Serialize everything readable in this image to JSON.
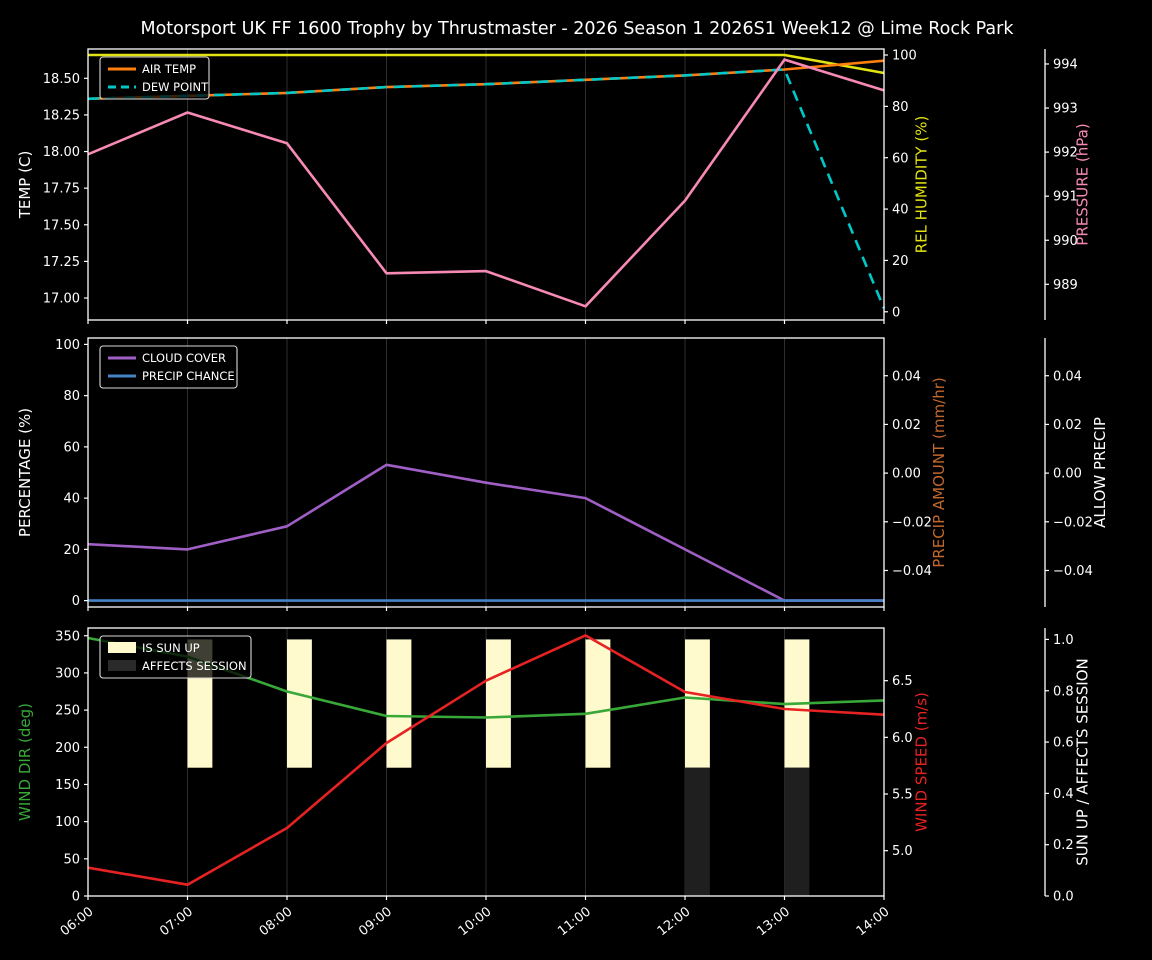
{
  "title": "Motorsport UK FF 1600 Trophy by Thrustmaster - 2026 Season 1 2026S1 Week12 @ Lime Rock Park",
  "figure": {
    "background": "#000000",
    "foreground": "#ffffff",
    "grid_color": "#2e2e2e",
    "spine_color": "#ffffff",
    "legend_border": "#d9d9d9"
  },
  "x_axis": {
    "hours": [
      6,
      7,
      8,
      9,
      10,
      11,
      12,
      13,
      14
    ],
    "labels": [
      "06:00",
      "07:00",
      "08:00",
      "09:00",
      "10:00",
      "11:00",
      "12:00",
      "13:00",
      "14:00"
    ]
  },
  "chart_data": [
    {
      "type": "line",
      "name": "temperature-humidity-pressure",
      "axes": {
        "left": {
          "id": "temp",
          "label": "TEMP (C)",
          "label_color": "#ffffff",
          "lim": [
            16.85,
            18.7
          ],
          "ticks": [
            17.0,
            17.25,
            17.5,
            17.75,
            18.0,
            18.25,
            18.5
          ],
          "tick_labels": [
            "17.00",
            "17.25",
            "17.50",
            "17.75",
            "18.00",
            "18.25",
            "18.50"
          ]
        },
        "right": [
          {
            "id": "humidity",
            "label": "REL HUMIDITY (%)",
            "label_color": "#e3e312",
            "lim": [
              -3.2,
              102.34
            ],
            "ticks": [
              0,
              20,
              40,
              60,
              80,
              100
            ],
            "tick_labels": [
              "0",
              "20",
              "40",
              "60",
              "80",
              "100"
            ],
            "offset": 0
          },
          {
            "id": "pressure",
            "label": "PRESSURE (hPa)",
            "label_color": "#f78ab4",
            "lim": [
              988.19,
              994.34
            ],
            "ticks": [
              989,
              990,
              991,
              992,
              993,
              994
            ],
            "tick_labels": [
              "989",
              "990",
              "991",
              "992",
              "993",
              "994"
            ],
            "offset": 161
          }
        ]
      },
      "series": [
        {
          "name": "REL HUMIDITY",
          "axis": "humidity",
          "kind": "line",
          "color": "#e3e312",
          "values": [
            100,
            100,
            100,
            100,
            100,
            100,
            100,
            100,
            93
          ]
        },
        {
          "name": "AIR TEMP",
          "axis": "temp",
          "kind": "line",
          "color": "#ff7f0e",
          "values": [
            18.36,
            18.38,
            18.4,
            18.44,
            18.46,
            18.49,
            18.52,
            18.56,
            18.62
          ]
        },
        {
          "name": "DEW POINT",
          "axis": "temp",
          "kind": "dashed-line",
          "color": "#00c8c8",
          "values": [
            18.36,
            18.38,
            18.4,
            18.44,
            18.46,
            18.49,
            18.52,
            18.56,
            16.93
          ]
        },
        {
          "name": "PRESSURE",
          "axis": "pressure",
          "kind": "line",
          "color": "#f78ab4",
          "values": [
            991.95,
            992.9,
            992.2,
            989.25,
            989.3,
            988.5,
            990.9,
            994.1,
            993.4
          ]
        }
      ],
      "legend": [
        {
          "label": "AIR TEMP",
          "swatch": "line",
          "color": "#ff7f0e"
        },
        {
          "label": "DEW POINT",
          "swatch": "dash",
          "color": "#00c8c8"
        }
      ]
    },
    {
      "type": "line",
      "name": "cloud-precip",
      "axes": {
        "left": {
          "id": "pct",
          "label": "PERCENTAGE (%)",
          "label_color": "#ffffff",
          "lim": [
            -2.5,
            102.5
          ],
          "ticks": [
            0,
            20,
            40,
            60,
            80,
            100
          ],
          "tick_labels": [
            "0",
            "20",
            "40",
            "60",
            "80",
            "100"
          ]
        },
        "right": [
          {
            "id": "precip_amount",
            "label": "PRECIP AMOUNT (mm/hr)",
            "label_color": "#c0682d",
            "lim": [
              -0.055,
              0.0555
            ],
            "ticks": [
              0.04,
              0.02,
              0,
              -0.02,
              -0.04
            ],
            "tick_labels": [
              "0.04",
              "0.02",
              "0.00",
              "−0.02",
              "−0.04"
            ],
            "offset": 0
          },
          {
            "id": "allow_precip",
            "label": "ALLOW PRECIP",
            "label_color": "#ffffff",
            "lim": [
              -0.055,
              0.0555
            ],
            "ticks": [
              0.04,
              0.02,
              0,
              -0.02,
              -0.04
            ],
            "tick_labels": [
              "0.04",
              "0.02",
              "0.00",
              "−0.02",
              "−0.04"
            ],
            "offset": 161
          }
        ]
      },
      "series": [
        {
          "name": "CLOUD COVER",
          "axis": "pct",
          "kind": "line",
          "color": "#a05fc5",
          "values": [
            22,
            20,
            29,
            53,
            46,
            40,
            20,
            0,
            0
          ]
        },
        {
          "name": "PRECIP CHANCE",
          "axis": "pct",
          "kind": "line",
          "color": "#4682c4",
          "values": [
            0,
            0,
            0,
            0,
            0,
            0,
            0,
            0,
            0
          ]
        }
      ],
      "legend": [
        {
          "label": "CLOUD COVER",
          "swatch": "line",
          "color": "#a05fc5"
        },
        {
          "label": "PRECIP CHANCE",
          "swatch": "line",
          "color": "#4682c4"
        }
      ]
    },
    {
      "type": "line-bar",
      "name": "wind-sun",
      "axes": {
        "left": {
          "id": "wdir",
          "label": "WIND DIR (deg)",
          "label_color": "#38a838",
          "lim": [
            0,
            360.4
          ],
          "ticks": [
            0,
            50,
            100,
            150,
            200,
            250,
            300,
            350
          ],
          "tick_labels": [
            "0",
            "50",
            "100",
            "150",
            "200",
            "250",
            "300",
            "350"
          ]
        },
        "right": [
          {
            "id": "wspd",
            "label": "WIND SPEED (m/s)",
            "label_color": "#e62222",
            "lim": [
              4.6,
              6.965
            ],
            "ticks": [
              5.0,
              5.5,
              6.0,
              6.5
            ],
            "tick_labels": [
              "5.0",
              "5.5",
              "6.0",
              "6.5"
            ],
            "offset": 0
          },
          {
            "id": "sun",
            "label": "SUN UP / AFFECTS SESSION",
            "label_color": "#ffffff",
            "lim": [
              0,
              1.0445
            ],
            "ticks": [
              0,
              0.2,
              0.4,
              0.6,
              0.8,
              1.0
            ],
            "tick_labels": [
              "0.0",
              "0.2",
              "0.4",
              "0.6",
              "0.8",
              "1.0"
            ],
            "offset": 161
          }
        ]
      },
      "series": [
        {
          "name": "IS SUN UP",
          "axis": "sun",
          "kind": "bar",
          "color": "#fffacd",
          "bar_span": [
            0.5,
            1.0
          ],
          "bar_width_hours": 0.25,
          "values": [
            0,
            1,
            1,
            1,
            1,
            1,
            1,
            1,
            0
          ]
        },
        {
          "name": "AFFECTS SESSION",
          "axis": "sun",
          "kind": "bar",
          "color": "#1f1f1f",
          "bar_span": [
            0,
            0.5
          ],
          "bar_width_hours": 0.25,
          "values": [
            0,
            0,
            0,
            0,
            0,
            0,
            1,
            1,
            0
          ]
        },
        {
          "name": "WIND DIR",
          "axis": "wdir",
          "kind": "line",
          "color": "#38a838",
          "values": [
            347,
            322,
            275,
            242,
            240,
            245,
            267,
            258,
            263
          ]
        },
        {
          "name": "WIND SPEED",
          "axis": "wspd",
          "kind": "line",
          "color": "#e62222",
          "values": [
            4.85,
            4.7,
            5.2,
            5.95,
            6.5,
            6.9,
            6.4,
            6.25,
            6.2
          ]
        }
      ],
      "legend": [
        {
          "label": "IS SUN UP",
          "swatch": "patch",
          "color": "#fffacd"
        },
        {
          "label": "AFFECTS SESSION",
          "swatch": "patch",
          "color": "#2a2a2a"
        }
      ],
      "show_x_labels": true
    }
  ]
}
